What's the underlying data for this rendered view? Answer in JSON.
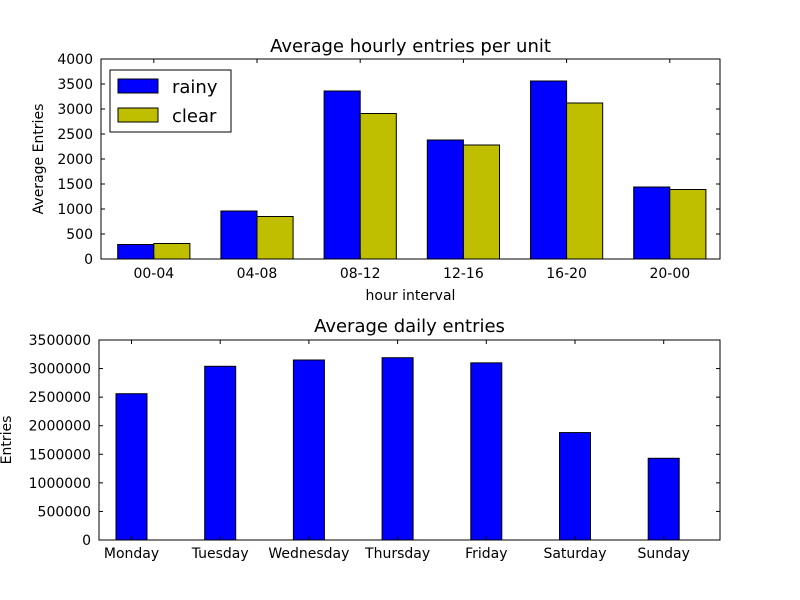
{
  "chart_data": [
    {
      "type": "bar",
      "title": "Average hourly entries per unit",
      "xlabel": "hour interval",
      "ylabel": "Average Entries",
      "ylim": [
        0,
        4000
      ],
      "yticks": [
        0,
        500,
        1000,
        1500,
        2000,
        2500,
        3000,
        3500,
        4000
      ],
      "categories": [
        "00-04",
        "04-08",
        "08-12",
        "12-16",
        "16-20",
        "20-00"
      ],
      "series": [
        {
          "name": "rainy",
          "color": "#0000ff",
          "values": [
            290,
            960,
            3360,
            2380,
            3560,
            1440
          ]
        },
        {
          "name": "clear",
          "color": "#bfbf00",
          "values": [
            310,
            850,
            2910,
            2280,
            3120,
            1390
          ]
        }
      ],
      "legend": "top-left",
      "grid": false
    },
    {
      "type": "bar",
      "title": "Average daily entries",
      "xlabel": "",
      "ylabel": "Entries",
      "ylim": [
        0,
        3500000
      ],
      "yticks": [
        0,
        500000,
        1000000,
        1500000,
        2000000,
        2500000,
        3000000,
        3500000
      ],
      "categories": [
        "Monday",
        "Tuesday",
        "Wednesday",
        "Thursday",
        "Friday",
        "Saturday",
        "Sunday"
      ],
      "series": [
        {
          "color": "#0000ff",
          "values": [
            2560000,
            3040000,
            3150000,
            3190000,
            3100000,
            1880000,
            1430000
          ]
        }
      ],
      "grid": false
    }
  ]
}
